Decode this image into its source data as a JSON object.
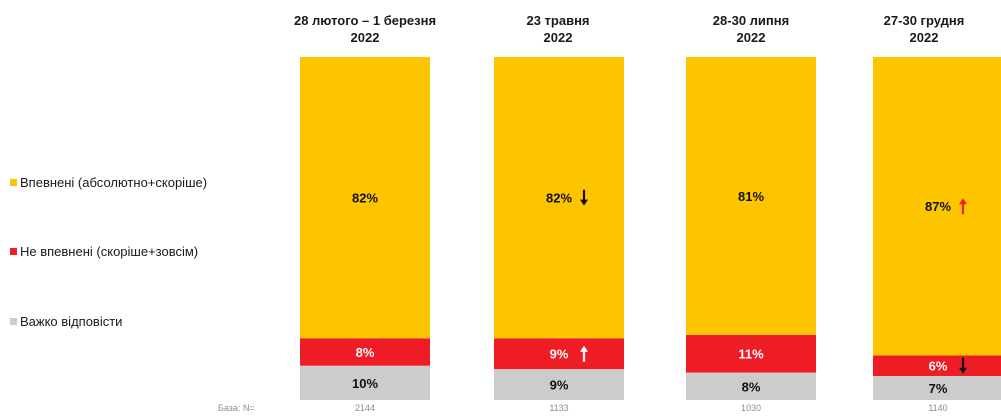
{
  "chart_data": {
    "type": "bar",
    "stacked": true,
    "percent": true,
    "categories": [
      "28 лютого – 1 березня 2022",
      "23 травня 2022",
      "28-30 липня 2022",
      "27-30 грудня 2022"
    ],
    "category_lines": [
      [
        "28 лютого – 1 березня",
        "2022"
      ],
      [
        "23 травня",
        "2022"
      ],
      [
        "28-30 липня",
        "2022"
      ],
      [
        "27-30 грудня",
        "2022"
      ]
    ],
    "series": [
      {
        "name": "Важко відповісти",
        "color": "#cccccc",
        "label_color": "#111111",
        "values": [
          10,
          9,
          8,
          7
        ]
      },
      {
        "name": "Не впевнені (скоріше+зовсім)",
        "color": "#ee1c25",
        "label_color": "#ffffff",
        "values": [
          8,
          9,
          11,
          6
        ]
      },
      {
        "name": "Впевнені (абсолютно+скоріше)",
        "color": "#fdc500",
        "label_color": "#111111",
        "values": [
          82,
          82,
          81,
          87
        ]
      }
    ],
    "change_markers": [
      {
        "category": 1,
        "series": 2,
        "direction": "down",
        "color": "#111111"
      },
      {
        "category": 1,
        "series": 1,
        "direction": "up",
        "color": "#ffffff"
      },
      {
        "category": 3,
        "series": 2,
        "direction": "up",
        "color": "#ee1c25"
      },
      {
        "category": 3,
        "series": 1,
        "direction": "down",
        "color": "#111111"
      }
    ],
    "legend_order": [
      "Впевнені (абсолютно+скоріше)",
      "Не впевнені (скоріше+зовсім)",
      "Важко відповісти"
    ],
    "legend_position": "left",
    "grid": false
  },
  "base": {
    "label": "База: N=",
    "values": [
      "2144",
      "1133",
      "1030",
      "1140"
    ]
  }
}
